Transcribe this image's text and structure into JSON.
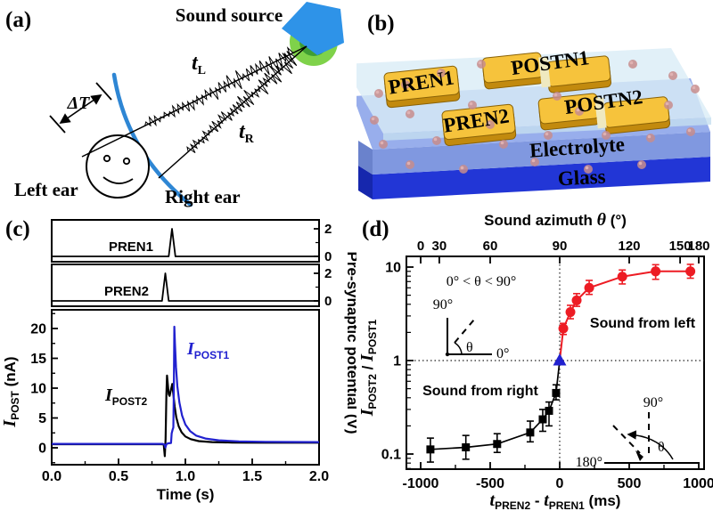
{
  "figure": {
    "panel_a": {
      "label": "(a)",
      "sound_source": "Sound source",
      "t_l": "t",
      "t_l_sub": "L",
      "t_r": "t",
      "t_r_sub": "R",
      "delta_t": "ΔT",
      "left_ear": "Left ear",
      "right_ear": "Right ear"
    },
    "panel_b": {
      "label": "(b)",
      "pren1": "PREN1",
      "postn1": "POSTN1",
      "pren2": "PREN2",
      "postn2": "POSTN2",
      "electrolyte": "Electrolyte",
      "glass": "Glass"
    },
    "panel_c": {
      "label": "(c)",
      "pren1": "PREN1",
      "pren2": "PREN2",
      "ipost1_sym": "I",
      "ipost1_sub": "POST1",
      "ipost2_sym": "I",
      "ipost2_sub": "POST2",
      "ylabel_sym": "I",
      "ylabel_sub": "POST",
      "ylabel_unit": " (nA)",
      "right_label": "Pre-synaptic potential (V)",
      "xlabel": "Time (s)"
    },
    "panel_d": {
      "label": "(d)",
      "top_label_pre": "Sound azimuth ",
      "theta": "θ",
      "top_label_post": " (°)",
      "ylabel_sym1": "I",
      "ylabel_sub1": "POST2",
      "ylabel_mid": " / ",
      "ylabel_sym2": "I",
      "ylabel_sub2": "POST1",
      "xlabel_sym1": "t",
      "xlabel_sub1": "PREN2",
      "xlabel_mid": " - ",
      "xlabel_sym2": "t",
      "xlabel_sub2": "PREN1",
      "xlabel_unit": " (ms)",
      "ann_range": "0° < θ < 90°",
      "sound_left": "Sound from left",
      "sound_right": "Sound from right",
      "inset1_90": "90°",
      "inset1_0": "0°",
      "inset1_theta": "θ",
      "inset2_90": "90°",
      "inset2_180": "180°",
      "inset2_theta": "θ"
    }
  },
  "chart_data": [
    {
      "type": "line",
      "panel": "c",
      "xlabel": "Time (s)",
      "xlim": [
        0,
        2
      ],
      "xticks": [
        0,
        0.5,
        1,
        1.5,
        2
      ],
      "xtick_labels": [
        "0.0",
        "0.5",
        "1.0",
        "1.5",
        "2.0"
      ],
      "xticks_minor": [
        0.25,
        0.75,
        1.25,
        1.75
      ],
      "ylabel_left": "IPOST (nA)",
      "ylim_left": [
        -3,
        23
      ],
      "yticks_left": [
        0,
        5,
        10,
        15,
        20
      ],
      "ytick_labels_left": [
        "0",
        "5",
        "10",
        "15",
        "20"
      ],
      "yticks_left_minor": [
        -2.5,
        2.5,
        7.5,
        12.5,
        17.5,
        22.5
      ],
      "ylabel_right": "Pre-synaptic potential (V)",
      "pulse_yticks": [
        2,
        0
      ],
      "pulse_ytick_labels": [
        "2",
        "0"
      ],
      "series": [
        {
          "name": "PREN1",
          "axis": "pulse1",
          "color": "#000000",
          "points": [
            [
              0,
              0
            ],
            [
              0.875,
              0
            ],
            [
              0.9,
              2
            ],
            [
              0.925,
              0
            ],
            [
              2,
              0
            ]
          ]
        },
        {
          "name": "PREN2",
          "axis": "pulse2",
          "color": "#000000",
          "points": [
            [
              0,
              0
            ],
            [
              0.825,
              0
            ],
            [
              0.85,
              2
            ],
            [
              0.875,
              0
            ],
            [
              2,
              0
            ]
          ]
        },
        {
          "name": "IPOST2",
          "axis": "main",
          "color": "#000000",
          "points": [
            [
              0,
              0.6
            ],
            [
              0.6,
              0.6
            ],
            [
              0.82,
              0.6
            ],
            [
              0.838,
              0.55
            ],
            [
              0.846,
              -1.4
            ],
            [
              0.852,
              1.5
            ],
            [
              0.858,
              9.0
            ],
            [
              0.863,
              12.1
            ],
            [
              0.868,
              10.8
            ],
            [
              0.875,
              9.0
            ],
            [
              0.882,
              8.7
            ],
            [
              0.893,
              9.8
            ],
            [
              0.902,
              10.7
            ],
            [
              0.91,
              9.0
            ],
            [
              0.92,
              6.9
            ],
            [
              0.932,
              5.1
            ],
            [
              0.95,
              3.6
            ],
            [
              0.972,
              2.6
            ],
            [
              1.0,
              1.9
            ],
            [
              1.04,
              1.45
            ],
            [
              1.1,
              1.12
            ],
            [
              1.2,
              0.95
            ],
            [
              1.35,
              0.88
            ],
            [
              1.6,
              0.85
            ],
            [
              2,
              0.85
            ]
          ]
        },
        {
          "name": "IPOST1",
          "axis": "main",
          "color": "#2121cf",
          "points": [
            [
              0,
              0.65
            ],
            [
              0.6,
              0.65
            ],
            [
              0.83,
              0.65
            ],
            [
              0.845,
              0.5
            ],
            [
              0.851,
              0.05
            ],
            [
              0.858,
              0.6
            ],
            [
              0.87,
              0.75
            ],
            [
              0.893,
              0.8
            ],
            [
              0.897,
              2.4
            ],
            [
              0.905,
              3.1
            ],
            [
              0.91,
              3.4
            ],
            [
              0.913,
              9.0
            ],
            [
              0.917,
              20.3
            ],
            [
              0.922,
              17.5
            ],
            [
              0.93,
              13.5
            ],
            [
              0.94,
              10.3
            ],
            [
              0.955,
              7.6
            ],
            [
              0.975,
              5.4
            ],
            [
              1.0,
              3.9
            ],
            [
              1.035,
              2.8
            ],
            [
              1.08,
              2.05
            ],
            [
              1.15,
              1.55
            ],
            [
              1.25,
              1.25
            ],
            [
              1.4,
              1.08
            ],
            [
              1.6,
              1.0
            ],
            [
              1.8,
              0.97
            ],
            [
              2,
              0.95
            ]
          ]
        }
      ]
    },
    {
      "type": "scatter",
      "panel": "d",
      "top_axis_label": "Sound azimuth θ (°)",
      "top_tick_values": [
        0,
        30,
        60,
        90,
        120,
        150,
        180
      ],
      "top_tick_labels": [
        "0",
        "30",
        "60",
        "90",
        "120",
        "150",
        "180"
      ],
      "xlabel": "tPREN2 - tPREN1 (ms)",
      "xlim": [
        -1100,
        1040
      ],
      "xtick_values": [
        -1000,
        -500,
        0,
        500,
        1000
      ],
      "xtick_labels": [
        "-1000",
        "-500",
        "0",
        "500",
        "1000"
      ],
      "xticks_minor": [
        -750,
        -250,
        250,
        750
      ],
      "ylabel": "IPOST2 / IPOST1",
      "yscale": "log",
      "ylim": [
        0.07,
        13
      ],
      "ytick_values": [
        0.1,
        1,
        10
      ],
      "ytick_labels": [
        "0.1",
        "1",
        "10"
      ],
      "reference_lines": {
        "horizontal_ratio": 1,
        "vertical_time": 0
      },
      "series": [
        {
          "name": "Sound from right",
          "marker": "square",
          "color": "#000000",
          "points": [
            [
              -930,
              0.112,
              0.082,
              0.148
            ],
            [
              -675,
              0.118,
              0.088,
              0.158
            ],
            [
              -450,
              0.128,
              0.104,
              0.165
            ],
            [
              -212,
              0.17,
              0.135,
              0.225
            ],
            [
              -122,
              0.235,
              0.175,
              0.3
            ],
            [
              -77,
              0.29,
              0.2,
              0.36
            ],
            [
              -26,
              0.45,
              0.38,
              0.55
            ]
          ]
        },
        {
          "name": "zero-delay",
          "marker": "triangle",
          "color": "#2121cf",
          "points": [
            [
              0,
              1.0,
              1.0,
              1.0
            ]
          ]
        },
        {
          "name": "Sound from left",
          "marker": "circle",
          "color": "#ed1c24",
          "points": [
            [
              26,
              2.2,
              1.9,
              2.5
            ],
            [
              77,
              3.3,
              2.8,
              3.9
            ],
            [
              122,
              4.4,
              3.8,
              5.2
            ],
            [
              212,
              6.0,
              5.1,
              7.2
            ],
            [
              450,
              7.9,
              6.6,
              9.3
            ],
            [
              690,
              9.0,
              7.4,
              10.6
            ],
            [
              940,
              9.0,
              7.6,
              10.7
            ]
          ]
        }
      ]
    }
  ],
  "colors": {
    "curve_blue": "#2121cf",
    "marker_red": "#ed1c24",
    "triangle_blue": "#2121cf",
    "wavefront_blue": "#2e86d4",
    "speaker_blue": "#2e93e8",
    "ring_green": "#7fd24a",
    "core_green": "#3f9e33",
    "core_dark_green": "#2d7b26",
    "electrolyte_top": "#98aeec",
    "electrolyte_front": "#8098e0",
    "electrolyte_side": "#6a82cc",
    "glass_front": "#2236d6",
    "glass_side": "#1627ad",
    "cover": "#d9ecf6",
    "cover_front": "#c6dff0",
    "gold": "#f6c33c",
    "gold_dark": "#c28a0e",
    "gold_edge": "#8a6206",
    "gap_pale": "#efe9c0",
    "ion": "#c78c8c",
    "ion_hi": "#e2b5b5"
  }
}
